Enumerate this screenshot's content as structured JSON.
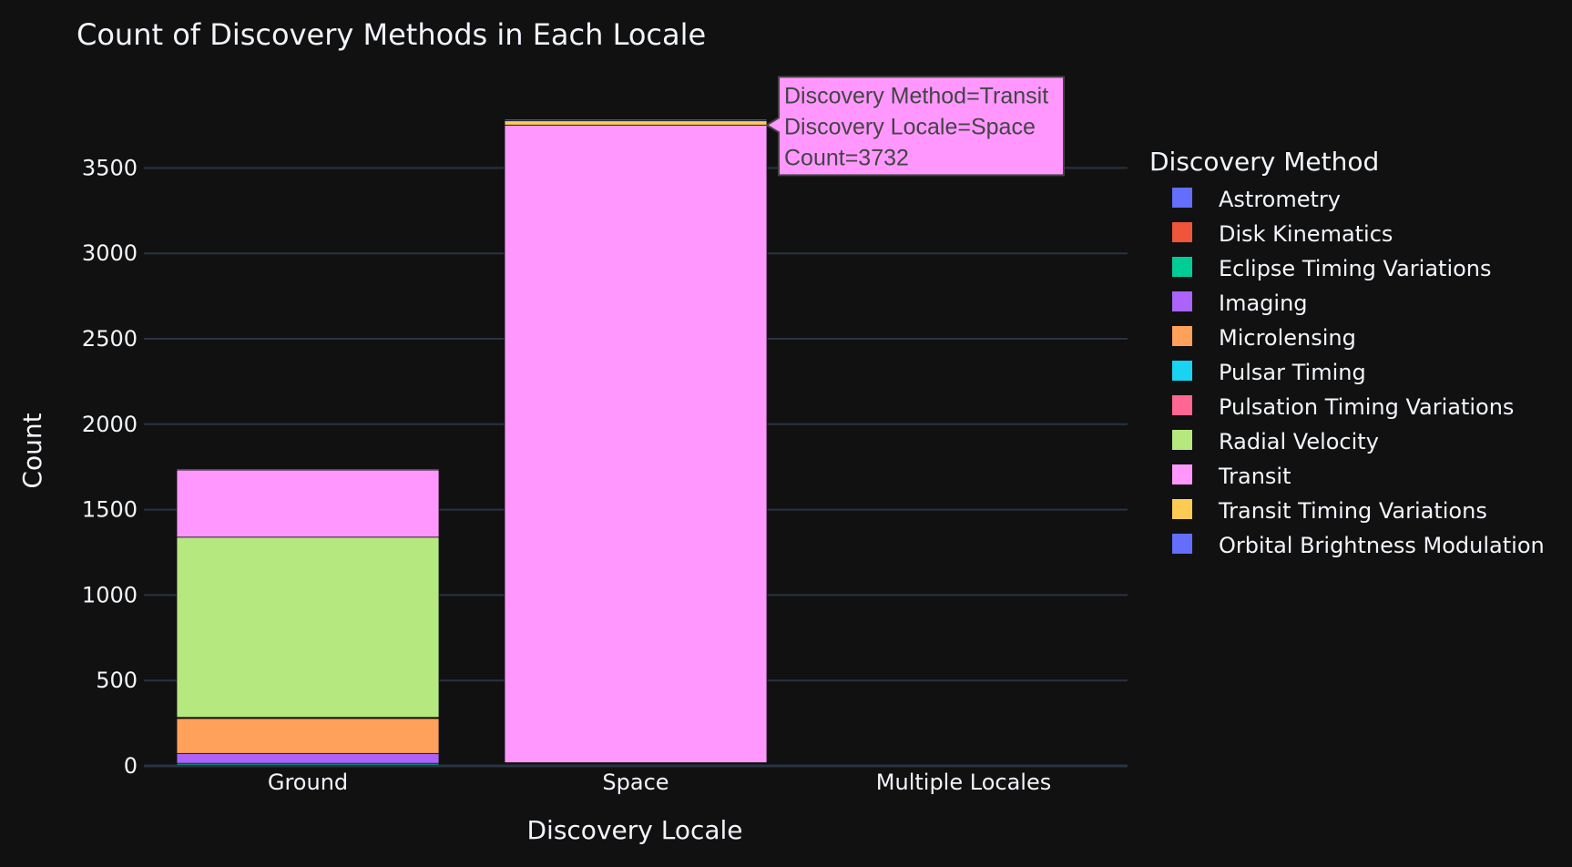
{
  "chart_data": {
    "type": "bar",
    "title": "Count of Discovery Methods in Each Locale",
    "xlabel": "Discovery Locale",
    "ylabel": "Count",
    "categories": [
      "Ground",
      "Space",
      "Multiple Locales"
    ],
    "ylim": [
      0,
      3950
    ],
    "yticks": [
      0,
      500,
      1000,
      1500,
      2000,
      2500,
      3000,
      3500
    ],
    "grid": true,
    "legend": {
      "title": "Discovery Method",
      "placement": "right"
    },
    "series": [
      {
        "name": "Astrometry",
        "color": "#636efa",
        "values": [
          3,
          0,
          0
        ]
      },
      {
        "name": "Disk Kinematics",
        "color": "#ef553b",
        "values": [
          1,
          0,
          0
        ]
      },
      {
        "name": "Eclipse Timing Variations",
        "color": "#00cc96",
        "values": [
          11,
          3,
          2
        ]
      },
      {
        "name": "Imaging",
        "color": "#ab63fa",
        "values": [
          58,
          8,
          0
        ]
      },
      {
        "name": "Microlensing",
        "color": "#ffa15a",
        "values": [
          205,
          2,
          0
        ]
      },
      {
        "name": "Pulsar Timing",
        "color": "#19d3f3",
        "values": [
          5,
          0,
          0
        ]
      },
      {
        "name": "Pulsation Timing Variations",
        "color": "#ff6692",
        "values": [
          1,
          1,
          0
        ]
      },
      {
        "name": "Radial Velocity",
        "color": "#b6e880",
        "values": [
          1055,
          5,
          3
        ]
      },
      {
        "name": "Transit",
        "color": "#ff97ff",
        "values": [
          393,
          3732,
          0
        ]
      },
      {
        "name": "Transit Timing Variations",
        "color": "#fecb52",
        "values": [
          6,
          25,
          0
        ]
      },
      {
        "name": "Orbital Brightness Modulation",
        "color": "#636efa",
        "values": [
          0,
          9,
          0
        ]
      }
    ],
    "tooltip": {
      "color": "#ff97ff",
      "lines": [
        "Discovery Method=Transit",
        "Discovery Locale=Space",
        "Count=3732"
      ]
    }
  }
}
